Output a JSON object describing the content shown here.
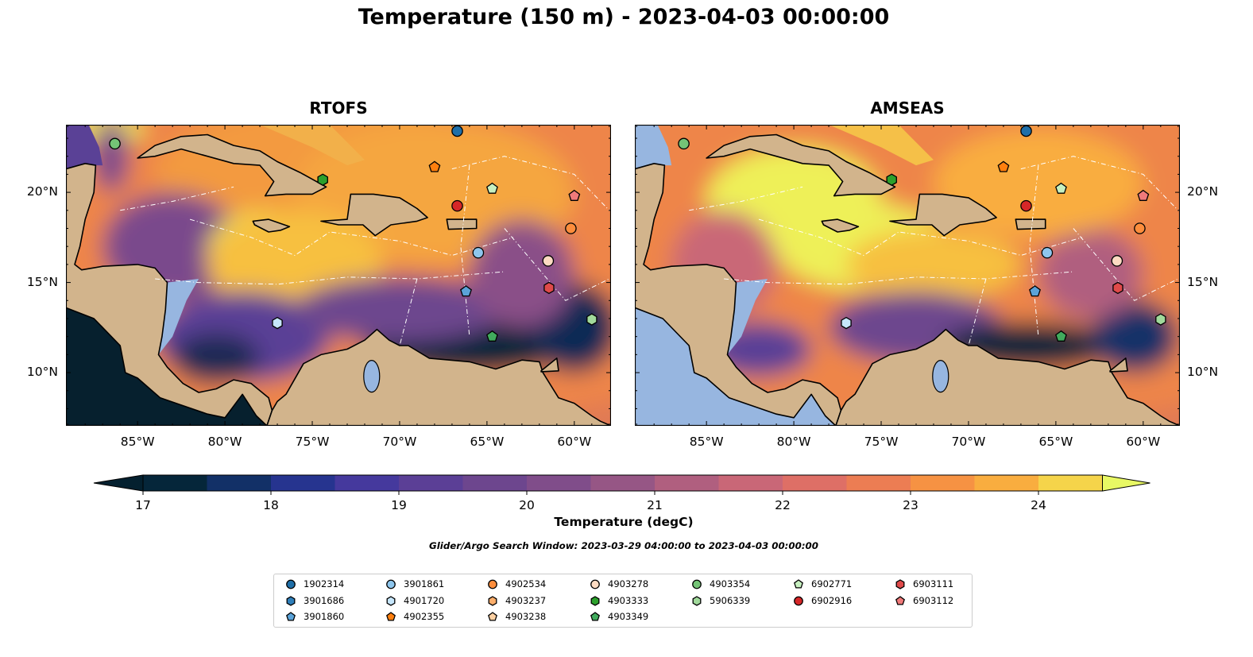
{
  "title": "Temperature (150 m) - 2023-04-03 00:00:00",
  "panels": [
    {
      "title": "RTOFS",
      "model": "rtofs"
    },
    {
      "title": "AMSEAS",
      "model": "amseas"
    }
  ],
  "axes": {
    "lon_ticks": [
      {
        "value": -85,
        "label": "85°W"
      },
      {
        "value": -80,
        "label": "80°W"
      },
      {
        "value": -75,
        "label": "75°W"
      },
      {
        "value": -70,
        "label": "70°W"
      },
      {
        "value": -65,
        "label": "65°W"
      },
      {
        "value": -60,
        "label": "60°W"
      }
    ],
    "lat_ticks": [
      {
        "value": 20,
        "label": "20°N"
      },
      {
        "value": 15,
        "label": "15°N"
      },
      {
        "value": 10,
        "label": "10°N"
      }
    ],
    "lon_range": [
      -89.1,
      -57.9
    ],
    "lat_range": [
      7.05,
      23.75
    ]
  },
  "colorbar": {
    "label": "Temperature (degC)",
    "min": 17,
    "max": 24.5,
    "step": 0.5,
    "ticks": [
      "17",
      "18",
      "19",
      "20",
      "21",
      "22",
      "23",
      "24"
    ],
    "colors": [
      "#05263a",
      "#123067",
      "#26348f",
      "#45399d",
      "#5b3f96",
      "#6d468e",
      "#804d8a",
      "#965685",
      "#b05f7f",
      "#c96777",
      "#de6f66",
      "#ec7d53",
      "#f69243",
      "#f9ad3f",
      "#f5d44a"
    ],
    "under_color": "#04202f",
    "over_color": "#e8f864"
  },
  "search_window": "Glider/Argo Search Window: 2023-03-29 04:00:00 to 2023-04-03 00:00:00",
  "map_colors": {
    "land": "#d2b48c",
    "shallow": "#97b6e0"
  },
  "floats": [
    {
      "id": "1902314",
      "shape": "circle",
      "color": "#1f6fa8",
      "lon": -66.7,
      "lat": 23.4
    },
    {
      "id": "3901686",
      "shape": "hexagon",
      "color": "#2f7fba"
    },
    {
      "id": "3901860",
      "shape": "pentagon",
      "color": "#5ba3d9",
      "lon": -66.2,
      "lat": 14.5
    },
    {
      "id": "3901861",
      "shape": "circle",
      "color": "#8ec6ed",
      "lon": -65.5,
      "lat": 16.65
    },
    {
      "id": "4901720",
      "shape": "hexagon",
      "color": "#c6e6fb",
      "lon": -77.0,
      "lat": 12.75
    },
    {
      "id": "4902355",
      "shape": "pentagon",
      "color": "#ff7f0e",
      "lon": -68.0,
      "lat": 21.4
    },
    {
      "id": "4902534",
      "shape": "circle",
      "color": "#fd8d3c",
      "lon": -60.2,
      "lat": 18.0
    },
    {
      "id": "4903237",
      "shape": "hexagon",
      "color": "#fdae6b"
    },
    {
      "id": "4903238",
      "shape": "pentagon",
      "color": "#fdd0a2"
    },
    {
      "id": "4903278",
      "shape": "circle",
      "color": "#fddbc2",
      "lon": -61.5,
      "lat": 16.2
    },
    {
      "id": "4903333",
      "shape": "hexagon",
      "color": "#2ca02c",
      "lon": -74.4,
      "lat": 20.7
    },
    {
      "id": "4903349",
      "shape": "pentagon",
      "color": "#41ab5d",
      "lon": -64.7,
      "lat": 12.0
    },
    {
      "id": "4903354",
      "shape": "circle",
      "color": "#74c476",
      "lon": -86.3,
      "lat": 22.7
    },
    {
      "id": "5906339",
      "shape": "hexagon",
      "color": "#a1d99b",
      "lon": -59.0,
      "lat": 12.95
    },
    {
      "id": "6902771",
      "shape": "pentagon",
      "color": "#c7f0c0",
      "lon": -64.7,
      "lat": 20.2
    },
    {
      "id": "6902916",
      "shape": "circle",
      "color": "#d62728",
      "lon": -66.7,
      "lat": 19.25
    },
    {
      "id": "6903111",
      "shape": "hexagon",
      "color": "#e04a4a",
      "lon": -61.45,
      "lat": 14.7
    },
    {
      "id": "6903112",
      "shape": "pentagon",
      "color": "#f07a7a",
      "lon": -60.0,
      "lat": 19.8
    }
  ]
}
